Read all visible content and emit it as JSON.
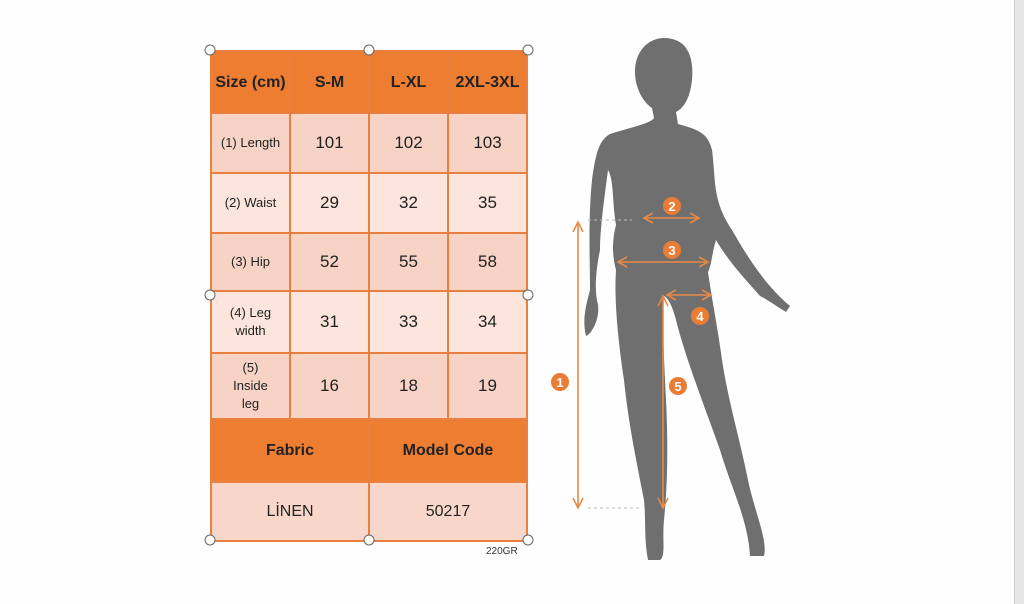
{
  "table": {
    "header": [
      "Size (cm)",
      "S-M",
      "L-XL",
      "2XL-3XL"
    ],
    "rows": [
      {
        "label": "(1) Length",
        "values": [
          "101",
          "102",
          "103"
        ]
      },
      {
        "label": "(2) Waist",
        "values": [
          "29",
          "32",
          "35"
        ]
      },
      {
        "label": "(3) Hip",
        "values": [
          "52",
          "55",
          "58"
        ]
      },
      {
        "label": "(4) Leg width",
        "values": [
          "31",
          "33",
          "34"
        ]
      },
      {
        "label": "(5) Inside leg",
        "values": [
          "16",
          "18",
          "19"
        ]
      }
    ],
    "info_headers": [
      "Fabric",
      "Model Code"
    ],
    "info_values": [
      "LİNEN",
      "50217"
    ],
    "note": "220GR"
  },
  "figure": {
    "markers": [
      "1",
      "2",
      "3",
      "4",
      "5"
    ]
  },
  "colors": {
    "accent": "#ed7d31",
    "silhouette": "#6f6f6f"
  }
}
